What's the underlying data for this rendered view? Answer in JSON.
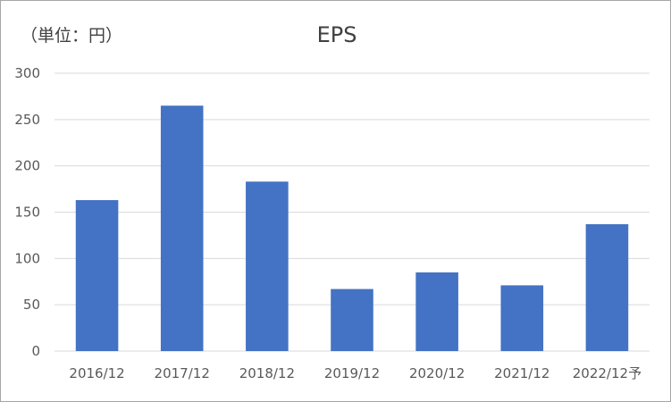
{
  "chart_data": {
    "type": "bar",
    "title": "EPS",
    "unit_label": "（単位：円）",
    "categories": [
      "2016/12",
      "2017/12",
      "2018/12",
      "2019/12",
      "2020/12",
      "2021/12",
      "2022/12予"
    ],
    "values": [
      163,
      265,
      183,
      67,
      85,
      71,
      137
    ],
    "ylim": [
      0,
      300
    ],
    "yticks": [
      "0",
      "50",
      "100",
      "150",
      "200",
      "250",
      "300"
    ],
    "grid": true,
    "legend": "none",
    "bar_color": "#4472c4"
  }
}
